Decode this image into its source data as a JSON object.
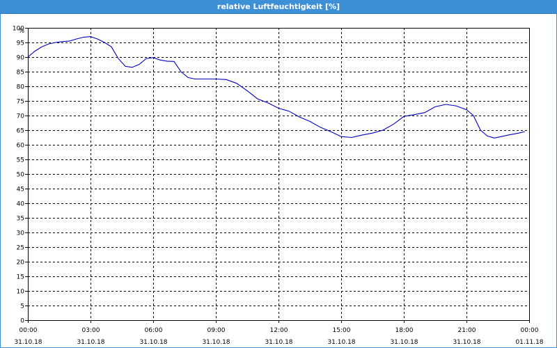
{
  "chart_data": {
    "type": "line",
    "title": "relative Luftfeuchtigkeit [%]",
    "ylabel": "%",
    "ylim": [
      0,
      100
    ],
    "y_ticks": [
      0,
      5,
      10,
      15,
      20,
      25,
      30,
      35,
      40,
      45,
      50,
      55,
      60,
      65,
      70,
      75,
      80,
      85,
      90,
      95,
      100
    ],
    "xlim": [
      0,
      24
    ],
    "x_ticks": [
      {
        "time": "00:00",
        "date": "31.10.18"
      },
      {
        "time": "03:00",
        "date": "31.10.18"
      },
      {
        "time": "06:00",
        "date": "31.10.18"
      },
      {
        "time": "09:00",
        "date": "31.10.18"
      },
      {
        "time": "12:00",
        "date": "31.10.18"
      },
      {
        "time": "15:00",
        "date": "31.10.18"
      },
      {
        "time": "18:00",
        "date": "31.10.18"
      },
      {
        "time": "21:00",
        "date": "31.10.18"
      },
      {
        "time": "00:00",
        "date": "01.11.18"
      }
    ],
    "grid": true,
    "line_color": "#0000c0",
    "series": [
      {
        "x": [
          0,
          0.33,
          0.67,
          1.0,
          1.33,
          1.67,
          2.0,
          2.33,
          2.67,
          3.0,
          3.33,
          3.67,
          4.0,
          4.33,
          4.67,
          5.0,
          5.33,
          5.67,
          6.0,
          6.33,
          6.67,
          7.0,
          7.33,
          7.67,
          8.0,
          8.5,
          9.0,
          9.5,
          10.0,
          10.5,
          11.0,
          11.5,
          12.0,
          12.5,
          13.0,
          13.5,
          14.0,
          14.5,
          15.0,
          15.5,
          16.0,
          16.5,
          17.0,
          17.5,
          18.0,
          18.5,
          19.0,
          19.5,
          20.0,
          20.5,
          21.0,
          21.33,
          21.67,
          22.0,
          22.33,
          22.67,
          23.0,
          23.5,
          23.8
        ],
        "y": [
          90,
          92,
          93.5,
          94.5,
          95,
          95.3,
          95.5,
          96.2,
          96.8,
          97,
          96.2,
          95,
          93.5,
          89.5,
          86.8,
          86.5,
          87.5,
          89.5,
          89.8,
          89,
          88.6,
          88.5,
          85,
          83,
          82.5,
          82.5,
          82.5,
          82.3,
          81,
          78.5,
          75.7,
          74.3,
          72.5,
          71.5,
          69.5,
          68,
          66,
          64.5,
          62.8,
          62.5,
          63.3,
          64,
          65,
          67,
          69.7,
          70.3,
          71,
          73,
          73.8,
          73.3,
          72,
          70,
          65,
          63,
          62.3,
          62.8,
          63.3,
          64,
          64.5
        ]
      }
    ]
  }
}
